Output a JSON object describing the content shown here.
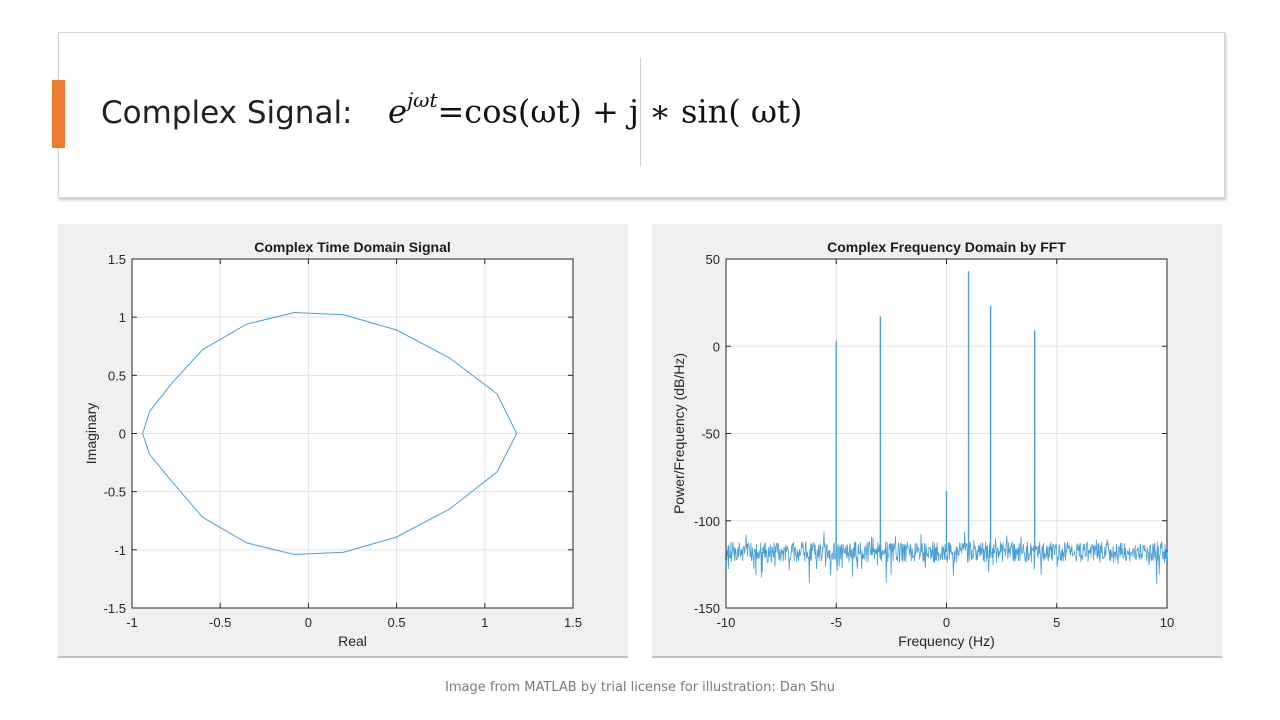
{
  "header": {
    "label": "Complex Signal:",
    "formula": {
      "base": "e",
      "exponent": "jωt",
      "equals": "=",
      "cos_part": "cos(ωt)",
      "plus": "+",
      "sin_part": "j ∗ sin( ωt)"
    }
  },
  "colors": {
    "accent": "#ed7d31",
    "plot_line": "#4a9fd6",
    "grid": "#e3e3e3"
  },
  "caption": "Image from MATLAB by trial license for illustration: Dan Shu",
  "chart_data": [
    {
      "type": "line",
      "title": "Complex Time Domain Signal",
      "xlabel": "Real",
      "ylabel": "Imaginary",
      "xlim": [
        -1,
        1.5
      ],
      "ylim": [
        -1.5,
        1.5
      ],
      "xticks": [
        "-1",
        "-0.5",
        "0",
        "0.5",
        "1",
        "1.5"
      ],
      "yticks": [
        "-1.5",
        "-1",
        "-0.5",
        "0",
        "0.5",
        "1",
        "1.5"
      ],
      "grid": true,
      "series": [
        {
          "points": [
            [
              1.18,
              0
            ],
            [
              1.07,
              0.34
            ],
            [
              0.8,
              0.65
            ],
            [
              0.5,
              0.89
            ],
            [
              0.2,
              1.02
            ],
            [
              -0.08,
              1.04
            ],
            [
              -0.35,
              0.94
            ],
            [
              -0.6,
              0.72
            ],
            [
              -0.77,
              0.44
            ],
            [
              -0.9,
              0.19
            ],
            [
              -0.94,
              0
            ],
            [
              -0.9,
              -0.18
            ],
            [
              -0.77,
              -0.42
            ],
            [
              -0.6,
              -0.72
            ],
            [
              -0.35,
              -0.94
            ],
            [
              -0.08,
              -1.04
            ],
            [
              0.2,
              -1.02
            ],
            [
              0.5,
              -0.89
            ],
            [
              0.8,
              -0.65
            ],
            [
              1.07,
              -0.33
            ],
            [
              1.18,
              0
            ]
          ]
        }
      ]
    },
    {
      "type": "line",
      "title": "Complex Frequency Domain by FFT",
      "xlabel": "Frequency (Hz)",
      "ylabel": "Power/Frequency (dB/Hz)",
      "xlim": [
        -10,
        10
      ],
      "ylim": [
        -150,
        50
      ],
      "xticks": [
        "-10",
        "-5",
        "0",
        "5",
        "10"
      ],
      "yticks": [
        "-150",
        "-100",
        "-50",
        "0",
        "50"
      ],
      "grid": true,
      "noise_floor": -118,
      "peaks": [
        {
          "x": -5,
          "y": 3
        },
        {
          "x": -3,
          "y": 17
        },
        {
          "x": 0,
          "y": -83
        },
        {
          "x": 1,
          "y": 43
        },
        {
          "x": 2,
          "y": 23
        },
        {
          "x": 4,
          "y": 9
        }
      ]
    }
  ]
}
